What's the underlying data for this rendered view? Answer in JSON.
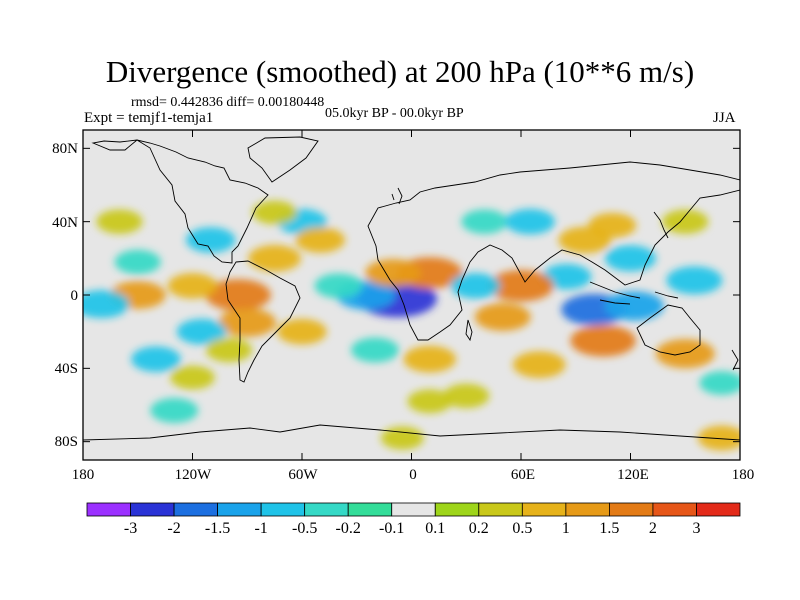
{
  "header": {
    "title": "Divergence (smoothed) at 200 hPa (10**6 m/s)",
    "stats": "rmsd= 0.442836 diff= 0.00180448",
    "period": "05.0kyr BP - 00.0kyr BP",
    "experiment": "Expt = temjf1-temja1",
    "season": "JJA"
  },
  "map": {
    "projection": "cylindrical-equidistant",
    "y_tick_labels": [
      "80N",
      "40N",
      "0",
      "40S",
      "80S"
    ],
    "x_tick_labels": [
      "180",
      "120W",
      "60W",
      "0",
      "60E",
      "120E",
      "180"
    ],
    "background_color": "#e6e6e6"
  },
  "colorbar": {
    "labels": [
      "-3",
      "-2",
      "-1.5",
      "-1",
      "-0.5",
      "-0.2",
      "-0.1",
      "0.1",
      "0.2",
      "0.5",
      "1",
      "1.5",
      "2",
      "3"
    ],
    "colors": [
      "#9b30ff",
      "#2a33d6",
      "#1c6fe0",
      "#1aa3ea",
      "#1fc3e8",
      "#35d9c6",
      "#33dd99",
      "#e6e6e6",
      "#9ed51a",
      "#c9c81a",
      "#e6b21a",
      "#e69a17",
      "#e37b16",
      "#e65618",
      "#e32a19"
    ]
  },
  "chart_data": {
    "type": "heatmap",
    "title": "Divergence (smoothed) at 200 hPa (10**6 m/s)",
    "units": "10**6 m/s",
    "levels": [
      -3,
      -2,
      -1.5,
      -1,
      -0.5,
      -0.2,
      -0.1,
      0.1,
      0.2,
      0.5,
      1,
      1.5,
      2,
      3
    ],
    "lon_range": [
      -180,
      180
    ],
    "lat_range": [
      -90,
      90
    ],
    "cells": [
      {
        "lon": -8,
        "lat": -2,
        "value": -2.5
      },
      {
        "lon": -25,
        "lat": 0,
        "value": -1.2
      },
      {
        "lon": 10,
        "lat": 12,
        "value": 1.6
      },
      {
        "lon": -10,
        "lat": 12,
        "value": 1.0
      },
      {
        "lon": 100,
        "lat": -8,
        "value": -1.6
      },
      {
        "lon": 122,
        "lat": -6,
        "value": -1.2
      },
      {
        "lon": 155,
        "lat": 8,
        "value": -1.0
      },
      {
        "lon": 85,
        "lat": 10,
        "value": -0.6
      },
      {
        "lon": 120,
        "lat": 20,
        "value": -0.7
      },
      {
        "lon": 60,
        "lat": 5,
        "value": 1.6
      },
      {
        "lon": 50,
        "lat": -12,
        "value": 1.0
      },
      {
        "lon": 105,
        "lat": -25,
        "value": 1.6
      },
      {
        "lon": 70,
        "lat": -38,
        "value": 0.8
      },
      {
        "lon": 150,
        "lat": -32,
        "value": 1.2
      },
      {
        "lon": 170,
        "lat": -48,
        "value": -0.3
      },
      {
        "lon": -95,
        "lat": 0,
        "value": 1.6
      },
      {
        "lon": -90,
        "lat": -15,
        "value": 1.1
      },
      {
        "lon": -75,
        "lat": 20,
        "value": 0.8
      },
      {
        "lon": -60,
        "lat": -20,
        "value": 0.6
      },
      {
        "lon": -150,
        "lat": 0,
        "value": 1.0
      },
      {
        "lon": -120,
        "lat": 5,
        "value": 0.6
      },
      {
        "lon": -170,
        "lat": -5,
        "value": -1.0
      },
      {
        "lon": -150,
        "lat": 18,
        "value": -0.4
      },
      {
        "lon": -115,
        "lat": -20,
        "value": -0.6
      },
      {
        "lon": -110,
        "lat": 30,
        "value": -0.6
      },
      {
        "lon": -40,
        "lat": 5,
        "value": -0.5
      },
      {
        "lon": -60,
        "lat": 40,
        "value": -0.6
      },
      {
        "lon": -50,
        "lat": 30,
        "value": 0.6
      },
      {
        "lon": -75,
        "lat": 45,
        "value": 0.3
      },
      {
        "lon": 40,
        "lat": 40,
        "value": -0.4
      },
      {
        "lon": 65,
        "lat": 40,
        "value": -0.6
      },
      {
        "lon": 95,
        "lat": 30,
        "value": 0.8
      },
      {
        "lon": 110,
        "lat": 38,
        "value": 0.5
      },
      {
        "lon": 150,
        "lat": 40,
        "value": 0.4
      },
      {
        "lon": 10,
        "lat": -35,
        "value": 0.8
      },
      {
        "lon": -20,
        "lat": -30,
        "value": -0.5
      },
      {
        "lon": -140,
        "lat": -35,
        "value": -0.6
      },
      {
        "lon": -120,
        "lat": -45,
        "value": 0.3
      },
      {
        "lon": -100,
        "lat": -30,
        "value": 0.4
      },
      {
        "lon": -160,
        "lat": 40,
        "value": 0.4
      },
      {
        "lon": -130,
        "lat": -63,
        "value": -0.5
      },
      {
        "lon": 10,
        "lat": -58,
        "value": 0.3
      },
      {
        "lon": 170,
        "lat": -78,
        "value": 0.5
      },
      {
        "lon": -5,
        "lat": -78,
        "value": 0.2
      },
      {
        "lon": 30,
        "lat": -55,
        "value": 0.4
      },
      {
        "lon": 35,
        "lat": 5,
        "value": -0.6
      }
    ]
  }
}
